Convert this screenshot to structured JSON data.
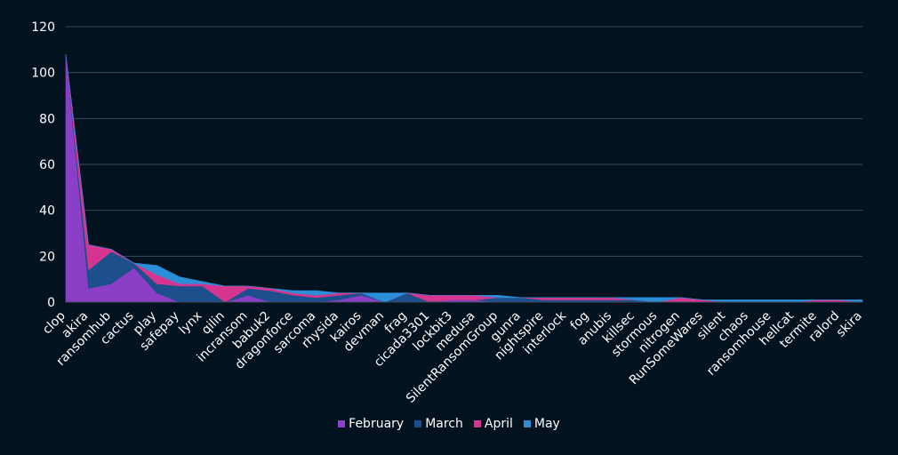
{
  "chart_data": {
    "type": "area",
    "title": "",
    "xlabel": "",
    "ylabel": "",
    "ylim": [
      0,
      120
    ],
    "yticks": [
      0,
      20,
      40,
      60,
      80,
      100,
      120
    ],
    "grid": true,
    "legend_position": "bottom",
    "categories": [
      "clop",
      "akira",
      "ransomhub",
      "cactus",
      "play",
      "safepay",
      "lynx",
      "qilin",
      "incransom",
      "babuk2",
      "dragonforce",
      "sarcoma",
      "rhysida",
      "kairos",
      "devman",
      "frag",
      "cicada3301",
      "lockbit3",
      "medusa",
      "SilentRansomGroup",
      "gunra",
      "nightspire",
      "interlock",
      "fog",
      "anubis",
      "killsec",
      "stormous",
      "nitrogen",
      "RunSomeWares",
      "silent",
      "chaos",
      "ransomhouse",
      "hellcat",
      "termite",
      "ralord",
      "skira"
    ],
    "series": [
      {
        "name": "February",
        "color": "#8A3FC6",
        "values": [
          108,
          6,
          8,
          15,
          4,
          0,
          0,
          0,
          3,
          0,
          0,
          0,
          1,
          3,
          0,
          0,
          0,
          1,
          1,
          0,
          0,
          0,
          0,
          0,
          0,
          0,
          0,
          0,
          0,
          0,
          0,
          0,
          0,
          0,
          0,
          0
        ]
      },
      {
        "name": "March",
        "color": "#1D4F8C",
        "values": [
          0,
          8,
          14,
          2,
          4,
          7,
          7,
          0,
          3,
          5,
          3,
          2,
          2,
          1,
          0,
          4,
          0,
          0,
          0,
          2,
          2,
          1,
          1,
          1,
          1,
          1,
          0,
          0,
          0,
          0,
          0,
          0,
          0,
          0,
          0,
          0
        ]
      },
      {
        "name": "April",
        "color": "#D6358F",
        "values": [
          0,
          11,
          1,
          0,
          4,
          1,
          1,
          7,
          1,
          1,
          1,
          1,
          1,
          0,
          0,
          0,
          3,
          2,
          2,
          0,
          0,
          1,
          1,
          1,
          1,
          0,
          0,
          2,
          1,
          0,
          0,
          0,
          0,
          1,
          1,
          0
        ]
      },
      {
        "name": "May",
        "color": "#2A8FD6",
        "values": [
          0,
          0,
          0,
          0,
          4,
          3,
          1,
          0,
          0,
          0,
          1,
          2,
          0,
          0,
          4,
          0,
          0,
          0,
          0,
          1,
          0,
          0,
          0,
          0,
          0,
          1,
          2,
          0,
          0,
          1,
          1,
          1,
          1,
          0,
          0,
          1
        ]
      }
    ]
  }
}
